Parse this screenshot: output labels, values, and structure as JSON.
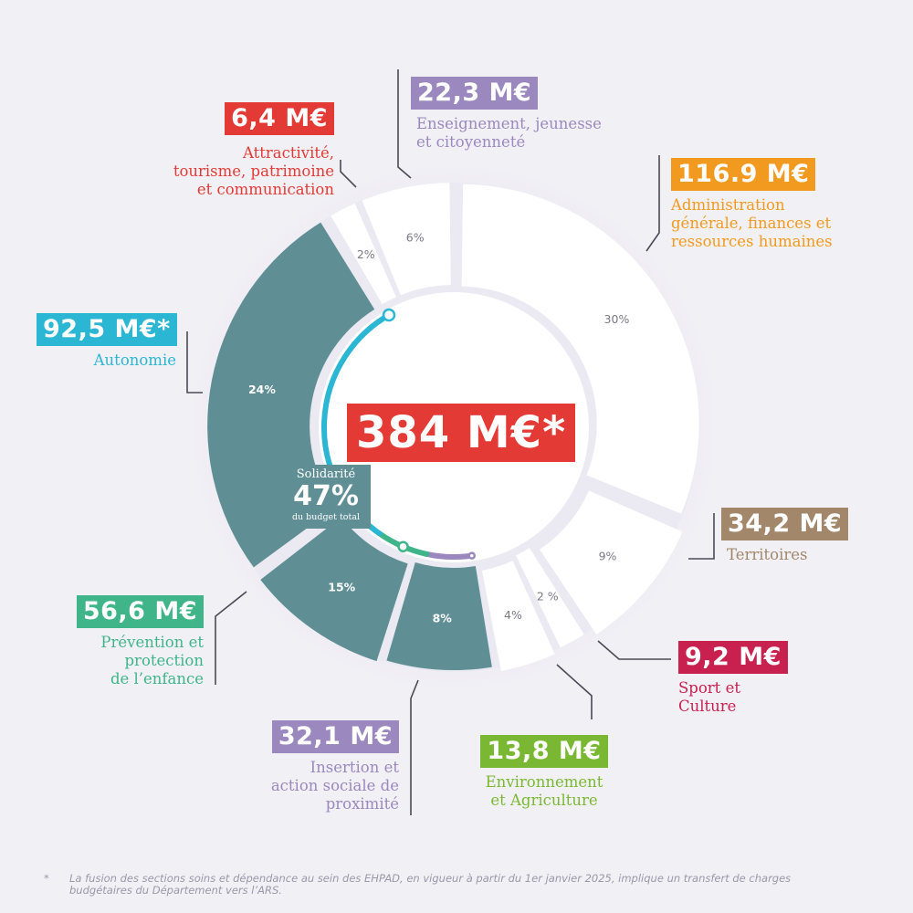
{
  "chart_data": {
    "type": "pie",
    "total": "384 M€*",
    "segments": [
      {
        "key": "admin",
        "value": "116.9 M€",
        "label": "Administration\ngénérale, finances et\nressources humaines",
        "pct": "30%",
        "color": "#f29a1f",
        "fill": "#ffffff",
        "solidarity": false
      },
      {
        "key": "territoires",
        "value": "34,2 M€",
        "label": "Territoires",
        "pct": "9%",
        "color": "#a3876b",
        "fill": "#ffffff",
        "solidarity": false
      },
      {
        "key": "sport",
        "value": "9,2 M€",
        "label": "Sport et\nCulture",
        "pct": "2 %",
        "color": "#c8204f",
        "fill": "#ffffff",
        "solidarity": false
      },
      {
        "key": "environnement",
        "value": "13,8 M€",
        "label": "Environnement\net Agriculture",
        "pct": "4%",
        "color": "#7ab834",
        "fill": "#ffffff",
        "solidarity": false
      },
      {
        "key": "insertion",
        "value": "32,1 M€",
        "label": "Insertion et\naction sociale de\nproximité",
        "pct": "8%",
        "color": "#9a88be",
        "fill": "#5f8f95",
        "solidarity": true
      },
      {
        "key": "prevention",
        "value": "56,6 M€",
        "label": "Prévention et\nprotection\nde l’enfance",
        "pct": "15%",
        "color": "#3fb589",
        "fill": "#5f8f95",
        "solidarity": true
      },
      {
        "key": "autonomie",
        "value": "92,5 M€*",
        "label": "Autonomie",
        "pct": "24%",
        "color": "#2bb6d4",
        "fill": "#5f8f95",
        "solidarity": true
      },
      {
        "key": "attractivite",
        "value": "6,4 M€",
        "label": "Attractivité,\ntourisme, patrimoine\net communication",
        "pct": "2%",
        "color": "#e33a36",
        "fill": "#ffffff",
        "solidarity": false
      },
      {
        "key": "enseignement",
        "value": "22,3 M€",
        "label": "Enseignement, jeunesse\net citoyenneté",
        "pct": "6%",
        "color": "#9a88be",
        "fill": "#ffffff",
        "solidarity": false
      }
    ],
    "solidarity": {
      "title": "Solidarité",
      "pct": "47%",
      "subtitle": "du budget total"
    }
  },
  "colors": {
    "background": "#f1f0f5",
    "segment_text_dark": "#7b7a86",
    "leader": "#4a4a55",
    "solidarity_fill": "#5f8f95"
  },
  "footnote": {
    "marker": "*",
    "text": "La fusion des sections soins et dépendance au sein des EHPAD, en vigueur à partir du 1er janvier 2025, implique un transfert de charges budgétaires du Département vers l’ARS."
  }
}
